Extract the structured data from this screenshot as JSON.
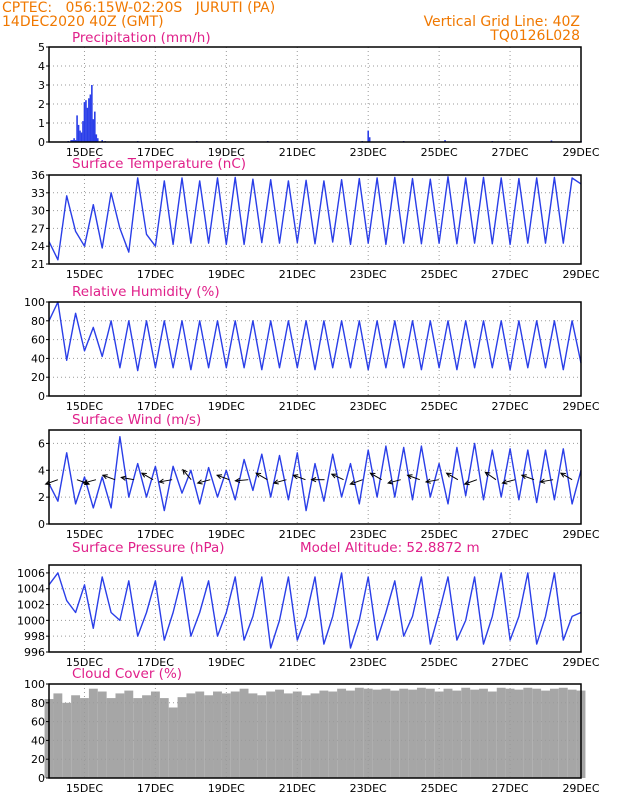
{
  "header": {
    "line1_left": "CPTEC:   056:15W-02:20S   JURUTI (PA)",
    "line2_left": "14DEC2020 40Z (GMT)",
    "line2_right": "Vertical Grid Line: 40Z",
    "line3_right": "TQ0126L028"
  },
  "colors": {
    "header": "#f07800",
    "title": "#e0208a",
    "series": "#2a3ee8",
    "cloud": "#a6a6a6",
    "grid": "#9a9a9a"
  },
  "chart_data": [
    {
      "type": "bar",
      "title": "Precipitation (mm/h)",
      "x_ticks": [
        "15DEC",
        "17DEC",
        "19DEC",
        "21DEC",
        "23DEC",
        "25DEC",
        "27DEC",
        "29DEC"
      ],
      "ylim": [
        0,
        5
      ],
      "yticks": [
        "0",
        "1",
        "2",
        "3",
        "4",
        "5"
      ],
      "x_unit": "hours since 14DEC2020 00Z",
      "values": [
        [
          13,
          0.05
        ],
        [
          15,
          0.1
        ],
        [
          16,
          0.1
        ],
        [
          17,
          0.2
        ],
        [
          18,
          0.1
        ],
        [
          19,
          1.4
        ],
        [
          20,
          0.9
        ],
        [
          21,
          0.6
        ],
        [
          22,
          0.5
        ],
        [
          23,
          1.1
        ],
        [
          24,
          2.1
        ],
        [
          25,
          2.2
        ],
        [
          26,
          1.8
        ],
        [
          27,
          2.3
        ],
        [
          28,
          2.5
        ],
        [
          29,
          3.0
        ],
        [
          30,
          1.2
        ],
        [
          31,
          1.6
        ],
        [
          32,
          0.4
        ],
        [
          33,
          0.2
        ],
        [
          36,
          0.1
        ],
        [
          38,
          0.05
        ],
        [
          60,
          0.05
        ],
        [
          100,
          0.05
        ],
        [
          148,
          0.05
        ],
        [
          212,
          0.05
        ],
        [
          216,
          0.6
        ],
        [
          217,
          0.25
        ],
        [
          240,
          0.05
        ],
        [
          268,
          0.1
        ],
        [
          300,
          0.05
        ],
        [
          340,
          0.08
        ],
        [
          360,
          0.05
        ]
      ]
    },
    {
      "type": "line",
      "title": "Surface Temperature (nC)",
      "x_ticks": [
        "15DEC",
        "17DEC",
        "19DEC",
        "21DEC",
        "23DEC",
        "25DEC",
        "27DEC",
        "29DEC"
      ],
      "ylim": [
        21,
        36
      ],
      "yticks": [
        "21",
        "24",
        "27",
        "30",
        "33",
        "36"
      ],
      "x_unit": "hours since 14DEC2020 00Z",
      "series": [
        {
          "x": [
            0,
            6,
            12,
            18,
            24,
            30,
            36,
            42,
            48,
            54,
            60,
            66,
            72,
            78,
            84,
            90,
            96,
            102,
            108,
            114,
            120,
            126,
            132,
            138,
            144,
            150,
            156,
            162,
            168,
            174,
            180,
            186,
            192,
            198,
            204,
            210,
            216,
            222,
            228,
            234,
            240,
            246,
            252,
            258,
            264,
            270,
            276,
            282,
            288,
            294,
            300,
            306,
            312,
            318,
            324,
            330,
            336,
            342,
            348,
            354,
            360
          ],
          "y": [
            24.8,
            21.7,
            32.5,
            26.5,
            24,
            31,
            23.7,
            33,
            27,
            23,
            35.5,
            26,
            24,
            35,
            24.3,
            35.5,
            24.5,
            35,
            24.5,
            35.5,
            24.3,
            35.6,
            24.3,
            35.3,
            24.6,
            35.2,
            24.5,
            35,
            24.6,
            35.1,
            24.4,
            35,
            24.7,
            35.2,
            24.3,
            35.4,
            24.5,
            35.5,
            24.3,
            35.6,
            24.5,
            35.4,
            24.4,
            35.3,
            24.5,
            35.7,
            24.4,
            35.5,
            24.5,
            35.6,
            24.4,
            35.5,
            24.3,
            35.4,
            24.5,
            35.5,
            24.5,
            35.6,
            24.5,
            35.5,
            34.5
          ]
        }
      ]
    },
    {
      "type": "line",
      "title": "Relative Humidity (%)",
      "x_ticks": [
        "15DEC",
        "17DEC",
        "19DEC",
        "21DEC",
        "23DEC",
        "25DEC",
        "27DEC",
        "29DEC"
      ],
      "ylim": [
        0,
        100
      ],
      "yticks": [
        "0",
        "20",
        "40",
        "60",
        "80",
        "100"
      ],
      "x_unit": "hours since 14DEC2020 00Z",
      "series": [
        {
          "x": [
            0,
            6,
            12,
            18,
            24,
            30,
            36,
            42,
            48,
            54,
            60,
            66,
            72,
            78,
            84,
            90,
            96,
            102,
            108,
            114,
            120,
            126,
            132,
            138,
            144,
            150,
            156,
            162,
            168,
            174,
            180,
            186,
            192,
            198,
            204,
            210,
            216,
            222,
            228,
            234,
            240,
            246,
            252,
            258,
            264,
            270,
            276,
            282,
            288,
            294,
            300,
            306,
            312,
            318,
            324,
            330,
            336,
            342,
            348,
            354,
            360
          ],
          "y": [
            80,
            100,
            38,
            88,
            48,
            73,
            42,
            80,
            30,
            80,
            27,
            80,
            30,
            80,
            30,
            80,
            28,
            80,
            30,
            80,
            30,
            80,
            30,
            80,
            28,
            80,
            30,
            80,
            30,
            80,
            28,
            80,
            30,
            80,
            30,
            80,
            28,
            80,
            30,
            80,
            30,
            80,
            28,
            80,
            30,
            80,
            28,
            80,
            30,
            80,
            30,
            80,
            28,
            80,
            30,
            80,
            30,
            80,
            28,
            80,
            35
          ]
        }
      ]
    },
    {
      "type": "line",
      "title": "Surface Wind (m/s)",
      "x_ticks": [
        "15DEC",
        "17DEC",
        "19DEC",
        "21DEC",
        "23DEC",
        "25DEC",
        "27DEC",
        "29DEC"
      ],
      "ylim": [
        0,
        7
      ],
      "yticks": [
        "0",
        "2",
        "4",
        "6"
      ],
      "x_unit": "hours since 14DEC2020 00Z",
      "series": [
        {
          "x": [
            0,
            6,
            12,
            18,
            24,
            30,
            36,
            42,
            48,
            54,
            60,
            66,
            72,
            78,
            84,
            90,
            96,
            102,
            108,
            114,
            120,
            126,
            132,
            138,
            144,
            150,
            156,
            162,
            168,
            174,
            180,
            186,
            192,
            198,
            204,
            210,
            216,
            222,
            228,
            234,
            240,
            246,
            252,
            258,
            264,
            270,
            276,
            282,
            288,
            294,
            300,
            306,
            312,
            318,
            324,
            330,
            336,
            342,
            348,
            354,
            360
          ],
          "y": [
            3,
            1.7,
            5.3,
            1.5,
            3.5,
            1.2,
            3.5,
            1.2,
            6.5,
            2,
            4.5,
            2,
            4.3,
            1,
            4.3,
            2.3,
            4,
            1.5,
            4.2,
            2,
            4,
            1.8,
            4.8,
            2.5,
            5.2,
            2,
            5.1,
            1.8,
            5.3,
            1,
            4.5,
            1.7,
            5.2,
            2,
            4.5,
            1.5,
            5.5,
            2,
            5.8,
            2,
            5.7,
            1.8,
            5.8,
            2,
            4.5,
            1.5,
            5.7,
            2.1,
            6,
            1.8,
            5.5,
            2,
            5.6,
            1.8,
            5.5,
            1.6,
            5.5,
            1.8,
            5.6,
            1.5,
            4
          ]
        }
      ],
      "arrow_directions_deg": [
        160,
        20,
        165,
        200,
        190,
        210,
        170,
        230,
        165,
        200,
        175,
        210,
        165,
        200,
        180,
        205,
        160,
        210,
        165,
        200,
        170,
        210,
        160,
        215,
        165,
        200,
        170,
        210
      ]
    },
    {
      "type": "line",
      "title": "Surface Pressure (hPa)",
      "annotation": "Model Altitude: 52.8872 m",
      "x_ticks": [
        "15DEC",
        "17DEC",
        "19DEC",
        "21DEC",
        "23DEC",
        "25DEC",
        "27DEC",
        "29DEC"
      ],
      "ylim": [
        996,
        1007
      ],
      "yticks": [
        "996",
        "998",
        "1000",
        "1002",
        "1004",
        "1006"
      ],
      "x_unit": "hours since 14DEC2020 00Z",
      "series": [
        {
          "x": [
            0,
            6,
            12,
            18,
            24,
            30,
            36,
            42,
            48,
            54,
            60,
            66,
            72,
            78,
            84,
            90,
            96,
            102,
            108,
            114,
            120,
            126,
            132,
            138,
            144,
            150,
            156,
            162,
            168,
            174,
            180,
            186,
            192,
            198,
            204,
            210,
            216,
            222,
            228,
            234,
            240,
            246,
            252,
            258,
            264,
            270,
            276,
            282,
            288,
            294,
            300,
            306,
            312,
            318,
            324,
            330,
            336,
            342,
            348,
            354,
            360
          ],
          "y": [
            1004.5,
            1006,
            1002.5,
            1001,
            1004.5,
            999,
            1005.5,
            1001,
            1000,
            1005,
            998,
            1001,
            1005,
            997.5,
            1001,
            1005.5,
            998,
            1001,
            1005,
            998,
            1001,
            1005.5,
            997.5,
            1000.5,
            1005.5,
            996.5,
            1000,
            1005.5,
            997.5,
            1000.5,
            1005.5,
            997,
            1000.5,
            1006,
            996.5,
            1000,
            1005.5,
            997.5,
            1001,
            1005,
            998,
            1000.5,
            1005.5,
            997,
            1001,
            1005.5,
            997.5,
            1000,
            1005.5,
            997,
            1000.5,
            1006,
            997.5,
            1000.5,
            1006,
            997,
            1000.5,
            1006,
            997.5,
            1000.5,
            1001
          ]
        }
      ]
    },
    {
      "type": "bar",
      "title": "Cloud Cover (%)",
      "x_ticks": [
        "15DEC",
        "17DEC",
        "19DEC",
        "21DEC",
        "23DEC",
        "25DEC",
        "27DEC",
        "29DEC"
      ],
      "ylim": [
        0,
        100
      ],
      "yticks": [
        "0",
        "20",
        "40",
        "60",
        "80",
        "100"
      ],
      "x_unit": "hours since 14DEC2020 00Z",
      "values": [
        [
          0,
          84
        ],
        [
          6,
          90
        ],
        [
          12,
          80
        ],
        [
          18,
          88
        ],
        [
          24,
          85
        ],
        [
          30,
          95
        ],
        [
          36,
          92
        ],
        [
          42,
          85
        ],
        [
          48,
          90
        ],
        [
          54,
          93
        ],
        [
          60,
          85
        ],
        [
          66,
          88
        ],
        [
          72,
          92
        ],
        [
          78,
          85
        ],
        [
          84,
          75
        ],
        [
          90,
          86
        ],
        [
          96,
          90
        ],
        [
          102,
          92
        ],
        [
          108,
          88
        ],
        [
          114,
          92
        ],
        [
          120,
          90
        ],
        [
          126,
          92
        ],
        [
          132,
          95
        ],
        [
          138,
          90
        ],
        [
          144,
          88
        ],
        [
          150,
          92
        ],
        [
          156,
          94
        ],
        [
          162,
          90
        ],
        [
          168,
          92
        ],
        [
          174,
          88
        ],
        [
          180,
          90
        ],
        [
          186,
          93
        ],
        [
          192,
          92
        ],
        [
          198,
          95
        ],
        [
          204,
          93
        ],
        [
          210,
          96
        ],
        [
          216,
          95
        ],
        [
          222,
          94
        ],
        [
          228,
          95
        ],
        [
          234,
          93
        ],
        [
          240,
          95
        ],
        [
          246,
          94
        ],
        [
          252,
          96
        ],
        [
          258,
          95
        ],
        [
          264,
          92
        ],
        [
          270,
          95
        ],
        [
          276,
          93
        ],
        [
          282,
          96
        ],
        [
          288,
          94
        ],
        [
          294,
          95
        ],
        [
          300,
          92
        ],
        [
          306,
          96
        ],
        [
          312,
          95
        ],
        [
          318,
          94
        ],
        [
          324,
          96
        ],
        [
          330,
          95
        ],
        [
          336,
          93
        ],
        [
          342,
          95
        ],
        [
          348,
          96
        ],
        [
          354,
          94
        ],
        [
          360,
          93
        ]
      ]
    }
  ]
}
